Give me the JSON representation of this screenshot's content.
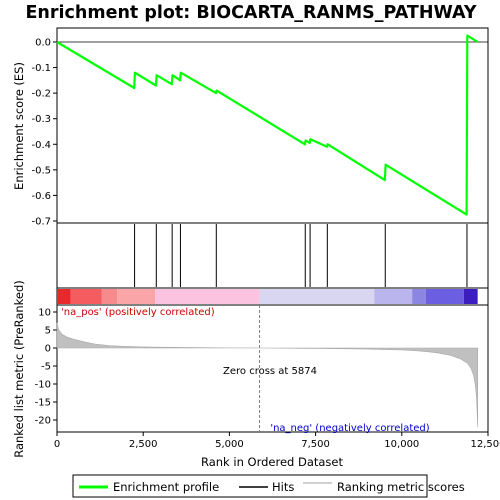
{
  "chart_data": {
    "type": "line",
    "title": "Enrichment plot: BIOCARTA_RANMS_PATHWAY",
    "xlabel": "Rank in Ordered Dataset",
    "ylabel_top": "Enrichment score (ES)",
    "ylabel_bottom": "Ranked list metric (PreRanked)",
    "xlim": [
      0,
      12500
    ],
    "x_ticks": [
      0,
      2500,
      5000,
      7500,
      10000,
      12500
    ],
    "x_tick_labels": [
      "0",
      "2,500",
      "5,000",
      "7,500",
      "10,000",
      "12,500"
    ],
    "es_ylim": [
      -0.7,
      0.05
    ],
    "es_ticks": [
      0.0,
      -0.1,
      -0.2,
      -0.3,
      -0.4,
      -0.5,
      -0.6,
      -0.7
    ],
    "es_tick_labels": [
      "0.0",
      "-0.1",
      "-0.2",
      "-0.3",
      "-0.4",
      "-0.5",
      "-0.6",
      "-0.7"
    ],
    "metric_ylim": [
      -23,
      12
    ],
    "metric_ticks": [
      10,
      5,
      0,
      -5,
      -10,
      -15,
      -20
    ],
    "metric_tick_labels": [
      "10",
      "5",
      "0",
      "-5",
      "-10",
      "-15",
      "-20"
    ],
    "n_genes": 12200,
    "series": [
      {
        "name": "Enrichment profile",
        "color": "#00ff00",
        "x": [
          0,
          2240,
          2260,
          2870,
          2890,
          3330,
          3350,
          3570,
          3590,
          4610,
          4630,
          7190,
          7210,
          7330,
          7350,
          7830,
          7850,
          9510,
          9530,
          11880,
          11900,
          12200
        ],
        "y": [
          0.0,
          -0.18,
          -0.12,
          -0.17,
          -0.13,
          -0.165,
          -0.13,
          -0.15,
          -0.12,
          -0.2,
          -0.19,
          -0.4,
          -0.385,
          -0.395,
          -0.38,
          -0.41,
          -0.4,
          -0.54,
          -0.48,
          -0.675,
          0.025,
          0.0
        ]
      }
    ],
    "hits": [
      2250,
      2880,
      3340,
      3580,
      4620,
      7200,
      7340,
      7840,
      9520,
      11890
    ],
    "metric_profile": {
      "x": [
        0,
        50,
        150,
        300,
        500,
        800,
        1100,
        1500,
        2000,
        2500,
        3000,
        3500,
        4000,
        5000,
        5874,
        7000,
        8000,
        9000,
        10000,
        10500,
        11000,
        11400,
        11700,
        11900,
        12000,
        12080,
        12130,
        12170,
        12200
      ],
      "y": [
        7.0,
        5.0,
        3.8,
        3.0,
        2.4,
        1.7,
        1.1,
        0.7,
        0.45,
        0.3,
        0.22,
        0.16,
        0.1,
        0.04,
        0.0,
        -0.08,
        -0.18,
        -0.3,
        -0.55,
        -0.8,
        -1.3,
        -2.0,
        -3.0,
        -4.2,
        -5.5,
        -7.5,
        -10.0,
        -14.0,
        -22.0
      ]
    },
    "heat_band": {
      "segments": [
        {
          "x0": 0,
          "x1": 400,
          "color": "#e8282c"
        },
        {
          "x0": 400,
          "x1": 1300,
          "color": "#f45c5f"
        },
        {
          "x0": 1300,
          "x1": 1750,
          "color": "#f78a8c"
        },
        {
          "x0": 1750,
          "x1": 2850,
          "color": "#faa5a8"
        },
        {
          "x0": 2850,
          "x1": 5874,
          "color": "#fcc3e0"
        },
        {
          "x0": 5874,
          "x1": 9200,
          "color": "#d9d6f2"
        },
        {
          "x0": 9200,
          "x1": 10300,
          "color": "#bab5ec"
        },
        {
          "x0": 10300,
          "x1": 10700,
          "color": "#8c85e2"
        },
        {
          "x0": 10700,
          "x1": 11800,
          "color": "#6b5ee0"
        },
        {
          "x0": 11800,
          "x1": 12200,
          "color": "#3c1ebf"
        }
      ]
    },
    "zero_cross_x": 5874,
    "annotations": {
      "zero_cross": "Zero cross at 5874",
      "pos_label": "'na_pos' (positively correlated)",
      "neg_label": "'na_neg' (negatively correlated)"
    },
    "legend": {
      "placement": "bottom",
      "entries": [
        {
          "label": "Enrichment profile",
          "color": "#00ff00"
        },
        {
          "label": "Hits",
          "color": "#000000"
        },
        {
          "label": "Ranking metric scores",
          "color": "#c0c0c0"
        }
      ]
    },
    "colors": {
      "pos_label": "#cc0000",
      "neg_label": "#0000cc",
      "metric_fill": "#c0c0c0",
      "zero_line": "#808080"
    }
  }
}
